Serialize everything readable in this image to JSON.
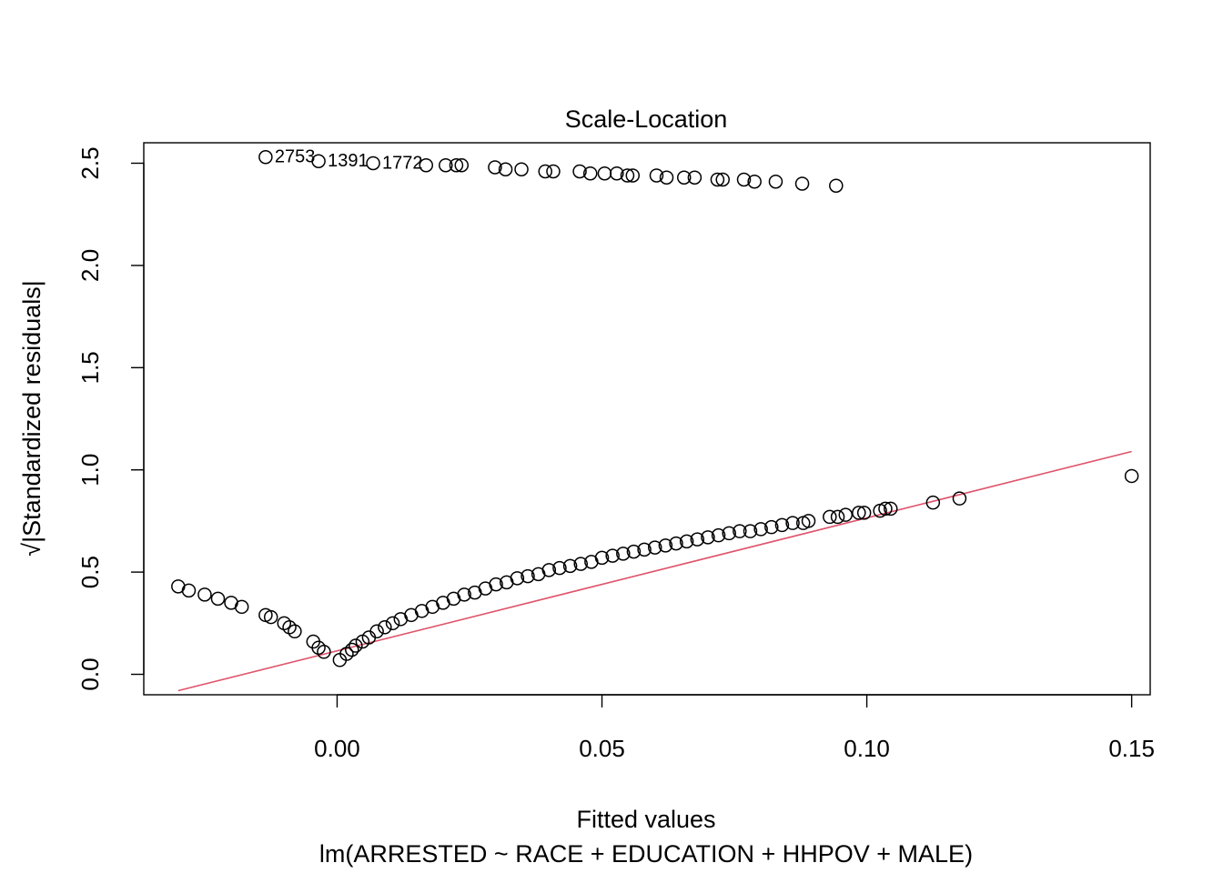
{
  "chart_data": {
    "type": "scatter",
    "title": "Scale-Location",
    "xlabel": "Fitted values",
    "ylabel": "√|Standardized residuals|",
    "subtitle": "lm(ARRESTED ~ RACE + EDUCATION + HHPOV + MALE)",
    "xlim": [
      -0.0365,
      0.1535
    ],
    "ylim": [
      -0.1,
      2.6
    ],
    "x_ticks": [
      0.0,
      0.05,
      0.1,
      0.15
    ],
    "x_tick_labels": [
      "0.00",
      "0.05",
      "0.10",
      "0.15"
    ],
    "y_ticks": [
      0.0,
      0.5,
      1.0,
      1.5,
      2.0,
      2.5
    ],
    "y_tick_labels": [
      "0.0",
      "0.5",
      "1.0",
      "1.5",
      "2.0",
      "2.5"
    ],
    "grid": false,
    "point_style": "open circle",
    "colors": {
      "points": "#000000",
      "smoother": "#DF536B"
    },
    "upper_band": {
      "x": [
        -0.0135,
        -0.0035,
        0.0068,
        0.0168,
        0.0205,
        0.0225,
        0.0235,
        0.0298,
        0.0318,
        0.0348,
        0.0393,
        0.0408,
        0.0458,
        0.0478,
        0.0505,
        0.0528,
        0.0548,
        0.0558,
        0.0603,
        0.0622,
        0.0655,
        0.0675,
        0.0718,
        0.0728,
        0.0768,
        0.0788,
        0.0828,
        0.0878,
        0.0942
      ],
      "y": [
        2.53,
        2.51,
        2.5,
        2.49,
        2.49,
        2.49,
        2.49,
        2.48,
        2.47,
        2.47,
        2.46,
        2.46,
        2.46,
        2.45,
        2.45,
        2.45,
        2.44,
        2.44,
        2.44,
        2.43,
        2.43,
        2.43,
        2.42,
        2.42,
        2.42,
        2.41,
        2.41,
        2.4,
        2.39
      ]
    },
    "lower_band": {
      "x": [
        -0.03,
        -0.028,
        -0.025,
        -0.0225,
        -0.02,
        -0.018,
        -0.0135,
        -0.0125,
        -0.01,
        -0.009,
        -0.008,
        -0.0045,
        -0.0035,
        -0.0025,
        0.0005,
        0.0018,
        0.0028,
        0.0035,
        0.0048,
        0.006,
        0.0075,
        0.009,
        0.0105,
        0.012,
        0.014,
        0.016,
        0.018,
        0.02,
        0.022,
        0.024,
        0.026,
        0.028,
        0.03,
        0.032,
        0.034,
        0.036,
        0.038,
        0.04,
        0.042,
        0.044,
        0.046,
        0.048,
        0.05,
        0.052,
        0.054,
        0.056,
        0.058,
        0.06,
        0.062,
        0.064,
        0.066,
        0.068,
        0.07,
        0.072,
        0.074,
        0.076,
        0.078,
        0.08,
        0.082,
        0.084,
        0.086,
        0.088,
        0.089,
        0.093,
        0.0945,
        0.096,
        0.0985,
        0.0995,
        0.1025,
        0.1035,
        0.1045,
        0.1125,
        0.1175,
        0.15
      ],
      "y": [
        0.43,
        0.41,
        0.39,
        0.37,
        0.35,
        0.33,
        0.29,
        0.28,
        0.25,
        0.23,
        0.21,
        0.16,
        0.13,
        0.11,
        0.07,
        0.1,
        0.12,
        0.14,
        0.16,
        0.18,
        0.21,
        0.23,
        0.25,
        0.27,
        0.29,
        0.31,
        0.33,
        0.35,
        0.37,
        0.39,
        0.4,
        0.42,
        0.44,
        0.45,
        0.47,
        0.48,
        0.49,
        0.51,
        0.52,
        0.53,
        0.54,
        0.55,
        0.57,
        0.58,
        0.59,
        0.6,
        0.61,
        0.62,
        0.63,
        0.64,
        0.65,
        0.66,
        0.67,
        0.68,
        0.69,
        0.7,
        0.7,
        0.71,
        0.72,
        0.73,
        0.74,
        0.74,
        0.75,
        0.77,
        0.77,
        0.78,
        0.79,
        0.79,
        0.8,
        0.81,
        0.81,
        0.84,
        0.86,
        0.97
      ]
    },
    "smoother": {
      "x": [
        -0.03,
        0.15
      ],
      "y": [
        -0.08,
        1.09
      ]
    },
    "annotations": [
      {
        "label": "2753",
        "x": -0.0135,
        "y": 2.53
      },
      {
        "label": "1391",
        "x": -0.0035,
        "y": 2.51
      },
      {
        "label": "1772",
        "x": 0.0068,
        "y": 2.5
      }
    ]
  }
}
